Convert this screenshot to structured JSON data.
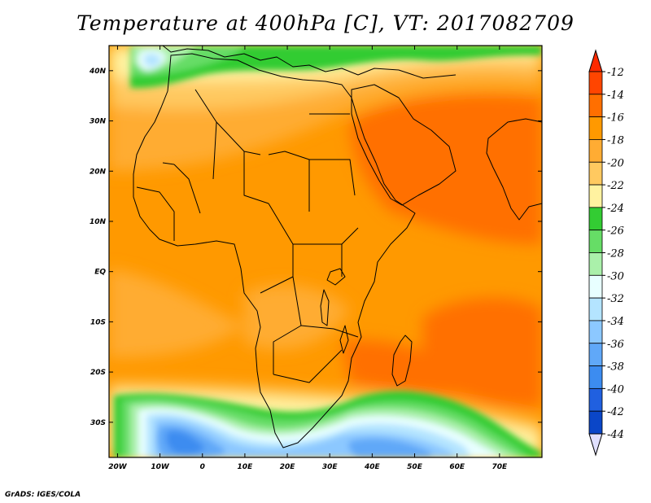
{
  "title": "Temperature at 400hPa [C], VT: 2017082709",
  "credit": "GrADS: IGES/COLA",
  "map": {
    "projection": "lat-lon",
    "lon_range": [
      -22,
      80
    ],
    "lat_range": [
      -37,
      45
    ],
    "lon_ticks": [
      {
        "value": -20,
        "label": "20W"
      },
      {
        "value": -10,
        "label": "10W"
      },
      {
        "value": 0,
        "label": "0"
      },
      {
        "value": 10,
        "label": "10E"
      },
      {
        "value": 20,
        "label": "20E"
      },
      {
        "value": 30,
        "label": "30E"
      },
      {
        "value": 40,
        "label": "40E"
      },
      {
        "value": 50,
        "label": "50E"
      },
      {
        "value": 60,
        "label": "60E"
      },
      {
        "value": 70,
        "label": "70E"
      }
    ],
    "lat_ticks": [
      {
        "value": 40,
        "label": "40N"
      },
      {
        "value": 30,
        "label": "30N"
      },
      {
        "value": 20,
        "label": "20N"
      },
      {
        "value": 10,
        "label": "10N"
      },
      {
        "value": 0,
        "label": "EQ"
      },
      {
        "value": -10,
        "label": "10S"
      },
      {
        "value": -20,
        "label": "20S"
      },
      {
        "value": -30,
        "label": "30S"
      }
    ]
  },
  "colorbar": {
    "levels": [
      "-12",
      "-14",
      "-16",
      "-18",
      "-20",
      "-22",
      "-24",
      "-26",
      "-28",
      "-30",
      "-32",
      "-34",
      "-36",
      "-38",
      "-40",
      "-42",
      "-44"
    ],
    "colors": [
      "#ff4500",
      "#ff6f00",
      "#ff9900",
      "#ffac33",
      "#ffc960",
      "#fff2a0",
      "#33cc33",
      "#66dd66",
      "#aaf0aa",
      "#e8ffff",
      "#b4e4ff",
      "#8cc8ff",
      "#60a8f8",
      "#3c8cf0",
      "#2060e0",
      "#0a46c8",
      "#0a1e82"
    ],
    "top_cap_color": "#ff2a00",
    "bottom_cap_color": "#e0e0ff"
  }
}
